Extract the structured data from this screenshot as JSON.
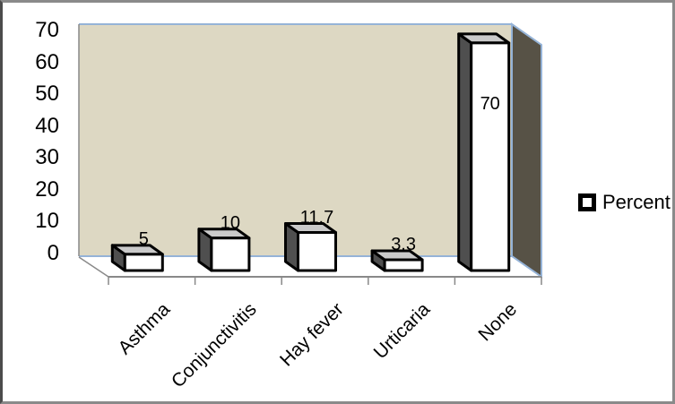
{
  "chart_data": {
    "type": "bar",
    "style": "3d",
    "title": "",
    "categories": [
      "Asthma",
      "Conjunctivitis",
      "Hay fever",
      "Urticaria",
      "None"
    ],
    "series": [
      {
        "name": "Percent",
        "values": [
          5,
          10,
          11.7,
          3.3,
          70
        ]
      }
    ],
    "data_labels": [
      "5",
      "10",
      "11.7",
      "3.3",
      "70"
    ],
    "data_label_placement": [
      "above",
      "above",
      "above",
      "above",
      "inside"
    ],
    "xlabel": "",
    "ylabel": "",
    "ylim": [
      0,
      70
    ],
    "ytick_step": 10,
    "ytick_labels": [
      "70",
      "60",
      "50",
      "40",
      "30",
      "20",
      "10",
      "0"
    ],
    "grid": false,
    "legend_position": "right",
    "colors": {
      "plot_wall": "#ddd8c3",
      "side_wall": "#575246",
      "wall_edge_blue": "#95b3d7",
      "axis_line_gray": "#898989",
      "bar_fill": "#ffffff",
      "bar_border": "#000000",
      "bar_top_face": "#cacaca",
      "bar_side_face": "#4f4f4f",
      "text": "#000000",
      "frame_border": "#8a8a8a"
    }
  },
  "legend": {
    "label": "Percent"
  }
}
